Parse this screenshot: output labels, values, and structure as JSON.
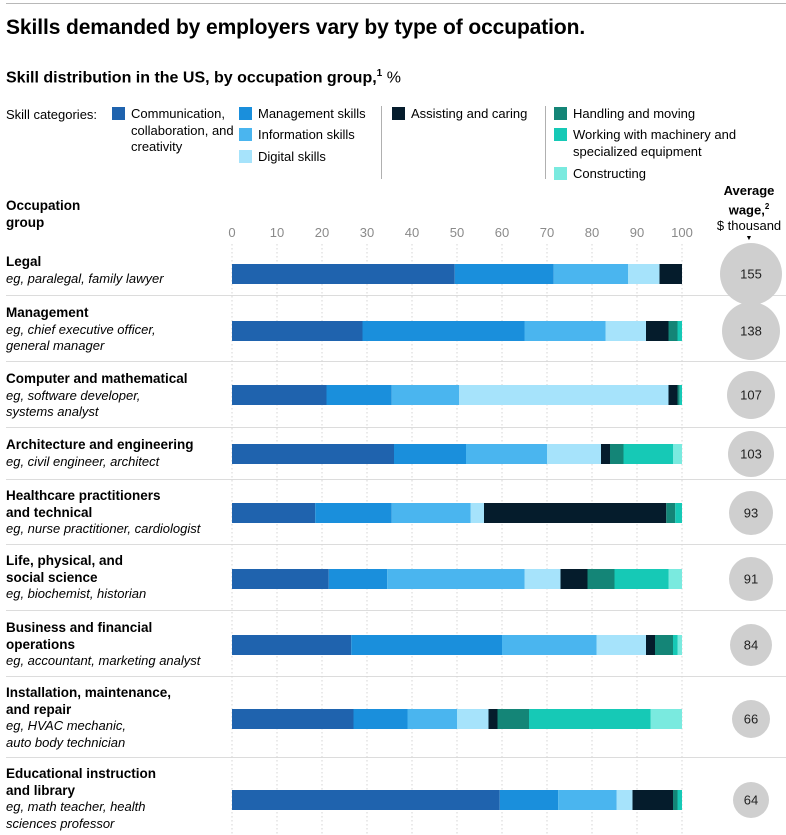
{
  "title": "Skills demanded by employers vary by type of occupation.",
  "subtitle": "Skill distribution in the US, by occupation group,",
  "subtitle_sup": "1",
  "subtitle_unit": "%",
  "legend": {
    "lead": "Skill categories:",
    "items": [
      {
        "label": "Communication, collaboration, and creativity",
        "color": "#1f63ae"
      },
      {
        "label": "Management skills",
        "color": "#1a8fdc"
      },
      {
        "label": "Information skills",
        "color": "#4ab5ef"
      },
      {
        "label": "Digital skills",
        "color": "#a6e3fb"
      },
      {
        "label": "Assisting and caring",
        "color": "#051c2c"
      },
      {
        "label": "Handling and moving",
        "color": "#148577"
      },
      {
        "label": "Working with machinery and specialized equipment",
        "color": "#16c9b6"
      },
      {
        "label": "Constructing",
        "color": "#7aeadf"
      }
    ]
  },
  "column_header": "Occupation group",
  "wage_header": {
    "line1": "Average",
    "line2": "wage,",
    "sup": "2",
    "line3": "$ thousand",
    "marker": "▼"
  },
  "chart_data": {
    "type": "bar",
    "orientation": "horizontal",
    "stacked": true,
    "title": "Skill distribution in the US, by occupation group, %",
    "xlim": [
      0,
      100
    ],
    "xticks": [
      0,
      10,
      20,
      30,
      40,
      50,
      60,
      70,
      80,
      90,
      100
    ],
    "categories": [
      "Legal",
      "Management",
      "Computer and mathematical",
      "Architecture and engineering",
      "Healthcare practitioners and technical",
      "Life, physical, and social science",
      "Business and financial operations",
      "Installation, maintenance, and repair",
      "Educational instruction and library"
    ],
    "examples": [
      "eg, paralegal, family lawyer",
      "eg, chief executive officer, general manager",
      "eg, software developer, systems analyst",
      "eg, civil engineer, architect",
      "eg, nurse practitioner, cardiologist",
      "eg, biochemist, historian",
      "eg, accountant, marketing analyst",
      "eg, HVAC mechanic, auto body technician",
      "eg, math teacher, health sciences professor"
    ],
    "series": [
      {
        "name": "Communication, collaboration, and creativity",
        "values": [
          49.5,
          29,
          21,
          36,
          18.5,
          21.5,
          26.5,
          27,
          59.5
        ]
      },
      {
        "name": "Management skills",
        "values": [
          22,
          36,
          14.5,
          16,
          17,
          13,
          33.5,
          12,
          13
        ]
      },
      {
        "name": "Information skills",
        "values": [
          16.5,
          18,
          15,
          18,
          17.5,
          30.5,
          21,
          11,
          13
        ]
      },
      {
        "name": "Digital skills",
        "values": [
          7,
          9,
          46.5,
          12,
          3,
          8,
          11,
          7,
          3.5
        ]
      },
      {
        "name": "Assisting and caring",
        "values": [
          5,
          5,
          2,
          2,
          40.5,
          6,
          2,
          2,
          9
        ]
      },
      {
        "name": "Handling and moving",
        "values": [
          0,
          2,
          0.5,
          3,
          2,
          6,
          4,
          7,
          1
        ]
      },
      {
        "name": "Working with machinery and specialized equipment",
        "values": [
          0,
          1,
          0.5,
          11,
          1.5,
          12,
          1,
          27,
          1
        ]
      },
      {
        "name": "Constructing",
        "values": [
          0,
          0,
          0,
          2,
          0,
          3,
          1,
          7,
          0
        ]
      }
    ],
    "average_wage": {
      "label": "Average wage, $ thousand",
      "values": [
        155,
        138,
        107,
        103,
        93,
        91,
        84,
        66,
        64
      ]
    }
  }
}
